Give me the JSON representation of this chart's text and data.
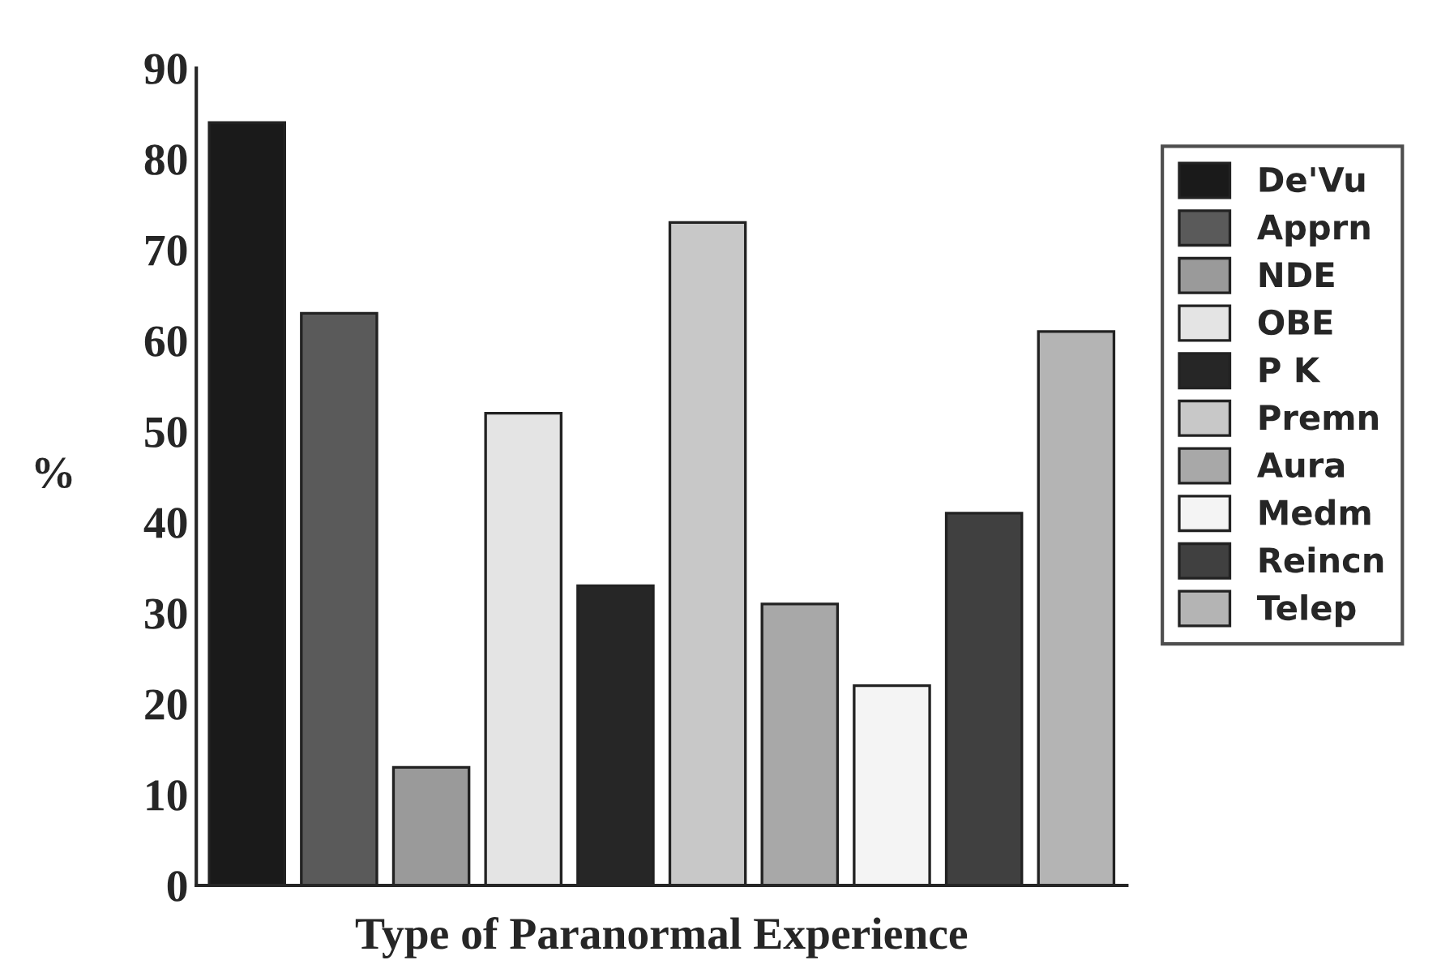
{
  "chart_data": {
    "type": "bar",
    "xlabel": "Type of Paranormal Experience",
    "ylabel": "%",
    "categories": [
      null,
      null,
      null,
      null,
      null,
      null,
      null,
      null,
      null,
      null
    ],
    "series": [
      {
        "name": "De'Vu",
        "color": "#1a1a1a",
        "values": [
          84,
          null,
          null,
          null,
          null,
          null,
          null,
          null,
          null,
          null
        ]
      },
      {
        "name": "Apprn",
        "color": "#5a5a5a",
        "values": [
          null,
          63,
          null,
          null,
          null,
          null,
          null,
          null,
          null,
          null
        ]
      },
      {
        "name": "NDE",
        "color": "#9a9a9a",
        "values": [
          null,
          null,
          13,
          null,
          null,
          null,
          null,
          null,
          null,
          null
        ]
      },
      {
        "name": "OBE",
        "color": "#e4e4e4",
        "values": [
          null,
          null,
          null,
          52,
          null,
          null,
          null,
          null,
          null,
          null
        ]
      },
      {
        "name": "P K",
        "color": "#262626",
        "values": [
          null,
          null,
          null,
          null,
          33,
          null,
          null,
          null,
          null,
          null
        ]
      },
      {
        "name": "Premn",
        "color": "#c8c8c8",
        "values": [
          null,
          null,
          null,
          null,
          null,
          73,
          null,
          null,
          null,
          null
        ]
      },
      {
        "name": "Aura",
        "color": "#a8a8a8",
        "values": [
          null,
          null,
          null,
          null,
          null,
          null,
          31,
          null,
          null,
          null
        ]
      },
      {
        "name": "Medm",
        "color": "#f4f4f4",
        "values": [
          null,
          null,
          null,
          null,
          null,
          null,
          null,
          22,
          null,
          null
        ]
      },
      {
        "name": "Reincn",
        "color": "#404040",
        "values": [
          null,
          null,
          null,
          null,
          null,
          null,
          null,
          null,
          41,
          null
        ]
      },
      {
        "name": "Telep",
        "color": "#b4b4b4",
        "values": [
          null,
          null,
          null,
          null,
          null,
          null,
          null,
          null,
          null,
          61
        ]
      }
    ],
    "ylim": [
      0,
      90
    ],
    "yticks": [
      0,
      10,
      20,
      30,
      40,
      50,
      60,
      70,
      80,
      90
    ],
    "tick_labels": "y",
    "grid": false,
    "legend": "right"
  }
}
